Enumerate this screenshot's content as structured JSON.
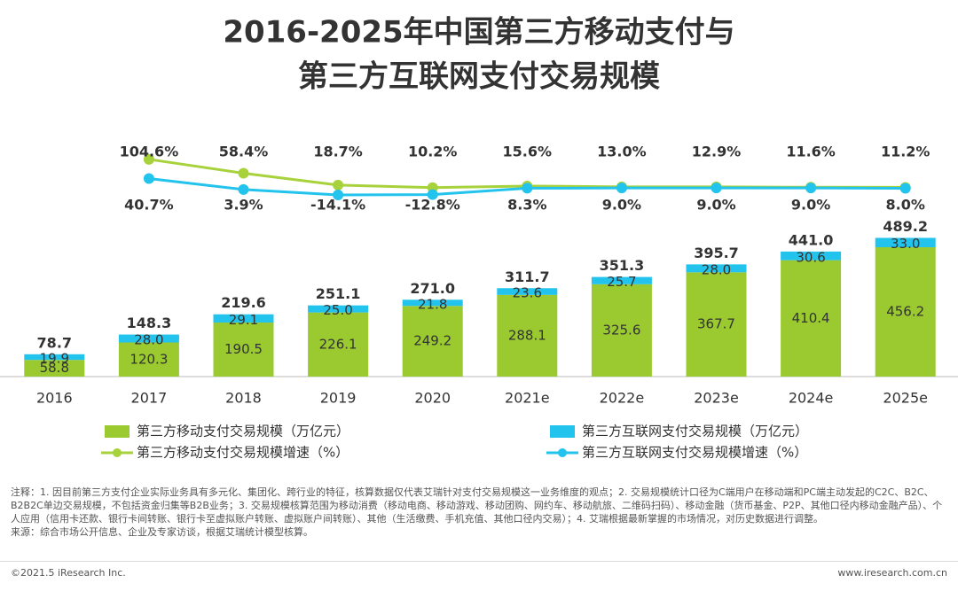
{
  "chart_data": {
    "type": "bar-line",
    "title": [
      "2016-2025年中国第三方移动支付与",
      "第三方互联网支付交易规模"
    ],
    "categories": [
      "2016",
      "2017",
      "2018",
      "2019",
      "2020",
      "2021e",
      "2022e",
      "2023e",
      "2024e",
      "2025e"
    ],
    "series": [
      {
        "name": "第三方移动支付交易规模（万亿元）",
        "type": "bar",
        "color": "#9ac930",
        "values": [
          58.8,
          120.3,
          190.5,
          226.1,
          249.2,
          288.1,
          325.6,
          367.7,
          410.4,
          456.2
        ],
        "value_labels": [
          "58.8",
          "120.3",
          "190.5",
          "226.1",
          "249.2",
          "288.1",
          "325.6",
          "367.7",
          "410.4",
          "456.2"
        ]
      },
      {
        "name": "第三方互联网支付交易规模（万亿元）",
        "type": "bar",
        "color": "#22c3ec",
        "values": [
          19.9,
          28.0,
          29.1,
          25.0,
          21.8,
          23.6,
          25.7,
          28.0,
          30.6,
          33.0
        ],
        "value_labels": [
          "19.9",
          "28.0",
          "29.1",
          "25.0",
          "21.8",
          "23.6",
          "25.7",
          "28.0",
          "30.6",
          "33.0"
        ]
      },
      {
        "name": "第三方移动支付交易规模增速（%）",
        "type": "line",
        "axis": "y2",
        "color": "#a8d23c",
        "values": [
          null,
          104.6,
          58.4,
          18.7,
          10.2,
          15.6,
          13.0,
          12.9,
          11.6,
          11.2
        ],
        "value_labels": [
          null,
          "104.6%",
          "58.4%",
          "18.7%",
          "10.2%",
          "15.6%",
          "13.0%",
          "12.9%",
          "11.6%",
          "11.2%"
        ]
      },
      {
        "name": "第三方互联网支付交易规模增速（%）",
        "type": "line",
        "axis": "y2",
        "color": "#22c3ec",
        "values": [
          null,
          40.7,
          3.9,
          -14.1,
          -12.8,
          8.3,
          9.0,
          9.0,
          9.0,
          8.0
        ],
        "value_labels": [
          null,
          "40.7%",
          "3.9%",
          "-14.1%",
          "-12.8%",
          "8.3%",
          "9.0%",
          "9.0%",
          "9.0%",
          "8.0%"
        ]
      }
    ],
    "totals": [
      78.7,
      148.3,
      219.6,
      251.1,
      271.0,
      311.7,
      351.3,
      395.7,
      441.0,
      489.2
    ],
    "total_labels": [
      "78.7",
      "148.3",
      "219.6",
      "251.1",
      "271.0",
      "311.7",
      "351.3",
      "395.7",
      "441.0",
      "489.2"
    ],
    "ylim": [
      0,
      500
    ],
    "y2lim": [
      -20,
      110
    ],
    "grid": false
  },
  "notes": "注释：1. 因目前第三方支付企业实际业务具有多元化、集团化、跨行业的特征，核算数据仅代表艾瑞针对支付交易规模这一业务维度的观点；2. 交易规模统计口径为C端用户在移动端和PC端主动发起的C2C、B2C、B2B2C单边交易规模，不包括资金归集等B2B业务；3. 交易规模核算范围为移动消费（移动电商、移动游戏、移动团购、网约车、移动航旅、二维码扫码）、移动金融（货币基金、P2P、其他口径内移动金融产品）、个人应用（信用卡还款、银行卡间转账、银行卡至虚拟账户转账、虚拟账户间转账）、其他（生活缴费、手机充值、其他口径内交易）；4. 艾瑞根据最新掌握的市场情况，对历史数据进行调整。",
  "source": "来源：综合市场公开信息、企业及专家访谈，根据艾瑞统计模型核算。",
  "copyright": "©2021.5 iResearch Inc.",
  "website": "www.iresearch.com.cn"
}
